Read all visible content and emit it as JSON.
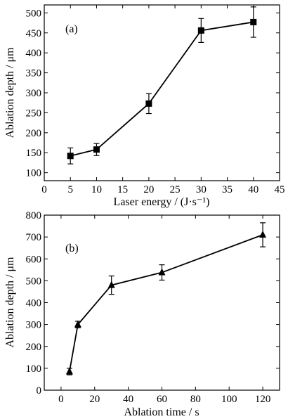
{
  "chart_data": [
    {
      "type": "line",
      "panel_label": "(a)",
      "xlabel": "Laser energy / (J·s⁻¹)",
      "ylabel": "Ablation depth / μm",
      "xlim": [
        0,
        45
      ],
      "ylim": [
        80,
        520
      ],
      "xticks": [
        0,
        5,
        10,
        15,
        20,
        25,
        30,
        35,
        40,
        45
      ],
      "yticks": [
        100,
        150,
        200,
        250,
        300,
        350,
        400,
        450,
        500
      ],
      "x": [
        5,
        10,
        20,
        30,
        40
      ],
      "values": [
        142,
        158,
        273,
        456,
        477
      ],
      "errors": [
        20,
        15,
        25,
        30,
        38
      ],
      "marker": "square",
      "grid": false
    },
    {
      "type": "line",
      "panel_label": "(b)",
      "xlabel": "Ablation time / s",
      "ylabel": "Ablation depth / μm",
      "xlim": [
        -10,
        130
      ],
      "ylim": [
        0,
        800
      ],
      "xticks": [
        0,
        20,
        40,
        60,
        80,
        100,
        120
      ],
      "yticks": [
        0,
        100,
        200,
        300,
        400,
        500,
        600,
        700,
        800
      ],
      "x": [
        5,
        10,
        30,
        60,
        120
      ],
      "values": [
        85,
        300,
        480,
        538,
        710
      ],
      "errors": [
        15,
        15,
        42,
        35,
        55
      ],
      "marker": "triangle",
      "grid": false
    }
  ]
}
